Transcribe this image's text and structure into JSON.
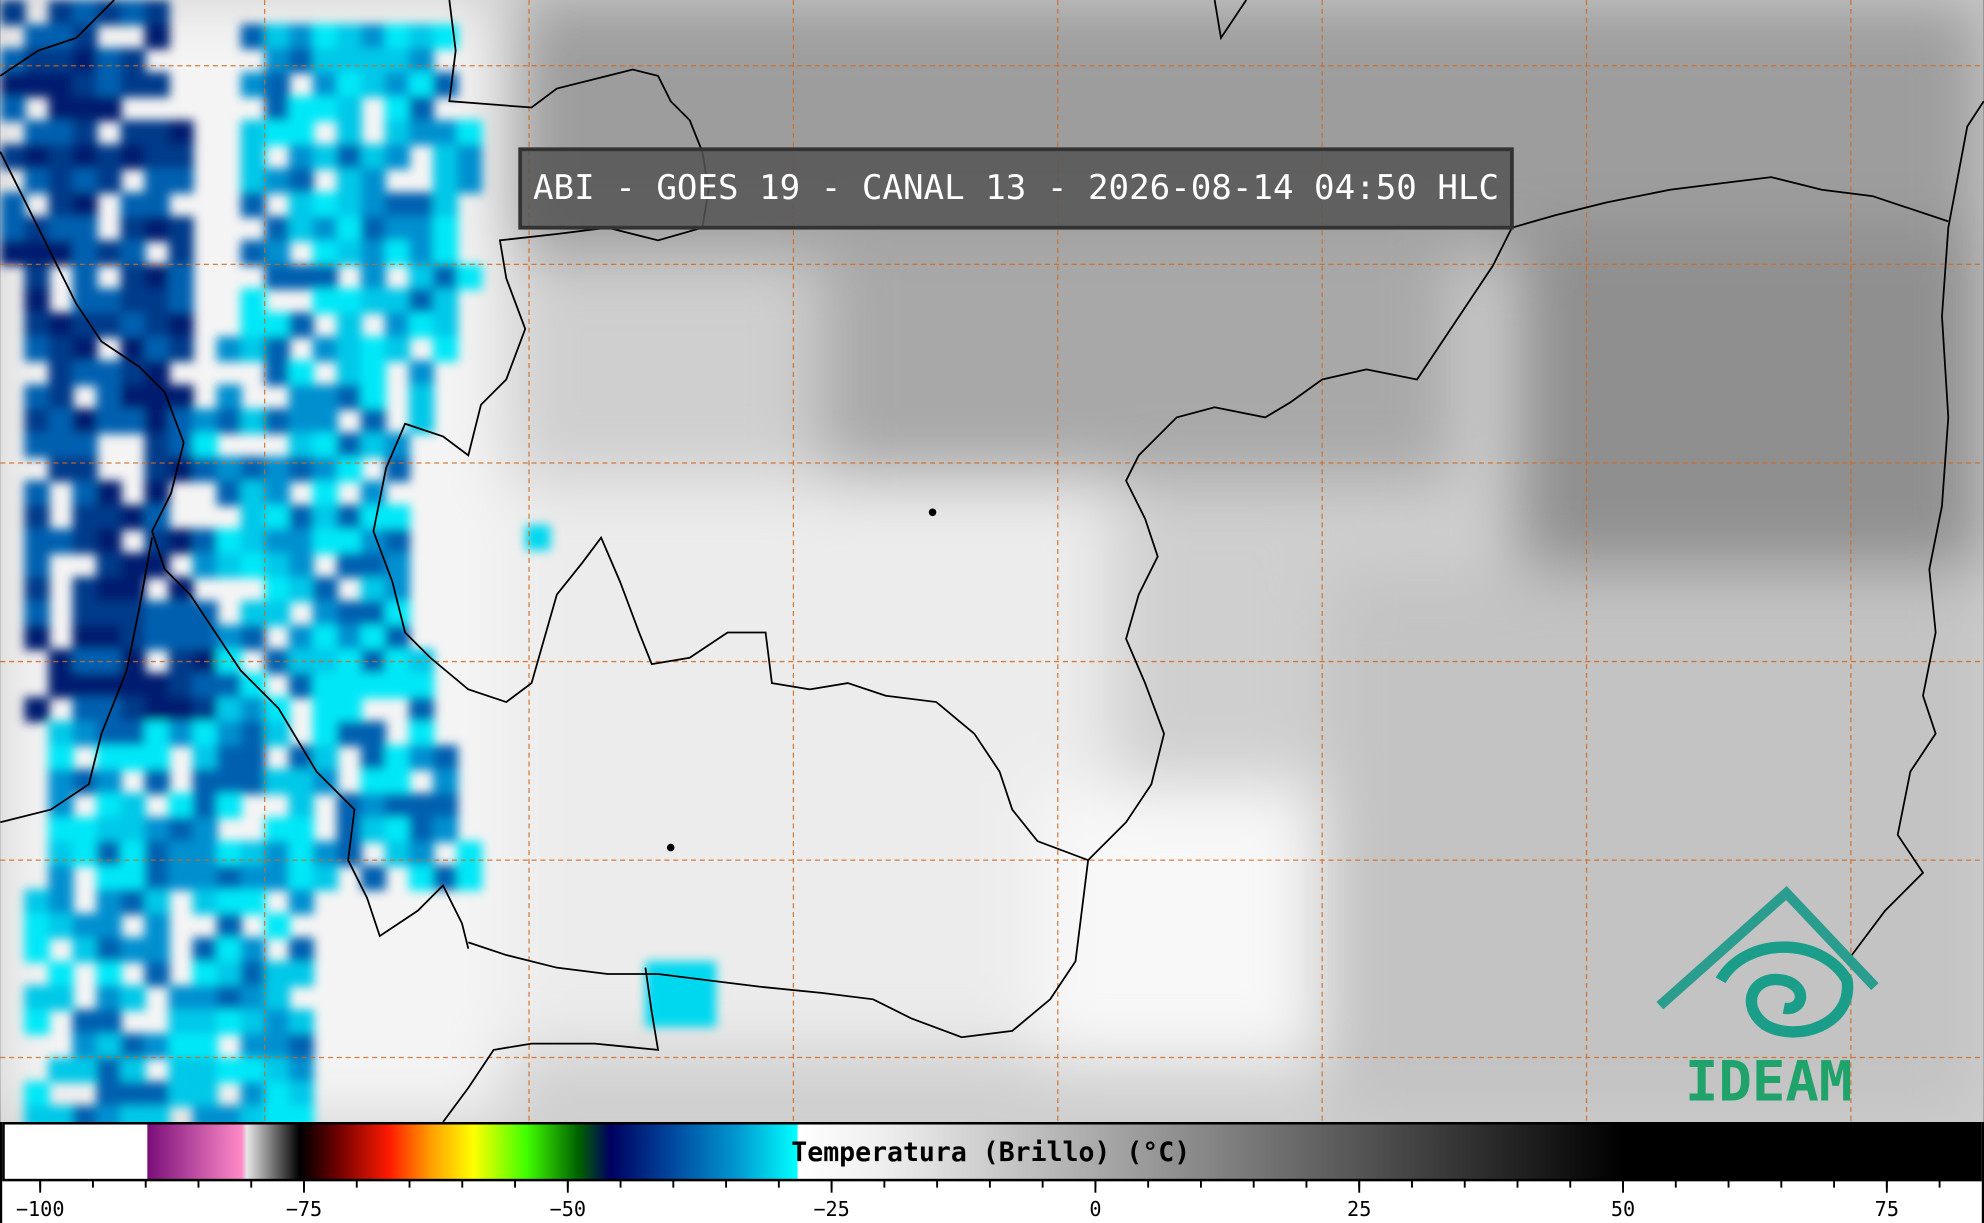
{
  "title": "ABI - GOES 19 - CANAL 13 - 2026-08-14 04:50 HLC",
  "logo": "IDEAM",
  "colorbar": {
    "label": "Temperatura (Brillo) (°C)",
    "clim": [
      -103.6,
      84
    ],
    "ticks": [
      {
        "value": -100,
        "label": "−100"
      },
      {
        "value": -75,
        "label": "−75"
      },
      {
        "value": -50,
        "label": "−50"
      },
      {
        "value": -25,
        "label": "−25"
      },
      0,
      25,
      50,
      75
    ],
    "minor_step": 5,
    "colormap": [
      {
        "value": -103.6,
        "color": "#ffffff"
      },
      {
        "value": -90,
        "color": "#ffffff"
      },
      {
        "value": -89.9,
        "color": "#7a0f7a"
      },
      {
        "value": -81,
        "color": "#ff8ac8"
      },
      {
        "value": -80.5,
        "color": "#e6e6e6"
      },
      {
        "value": -75.5,
        "color": "#000000"
      },
      {
        "value": -72,
        "color": "#6a0000"
      },
      {
        "value": -67,
        "color": "#ff1a00"
      },
      {
        "value": -63,
        "color": "#ffa000"
      },
      {
        "value": -59,
        "color": "#ffff00"
      },
      {
        "value": -54,
        "color": "#40ff00"
      },
      {
        "value": -49,
        "color": "#006000"
      },
      {
        "value": -46,
        "color": "#000060"
      },
      {
        "value": -40,
        "color": "#004aa0"
      },
      {
        "value": -34,
        "color": "#0098d0"
      },
      {
        "value": -28.3,
        "color": "#00ffff"
      },
      {
        "value": -28.2,
        "color": "#ffffff"
      },
      {
        "value": -20,
        "color": "#eeeeee"
      },
      {
        "value": 50,
        "color": "#000000"
      },
      {
        "value": 84,
        "color": "#000000"
      }
    ]
  }
}
